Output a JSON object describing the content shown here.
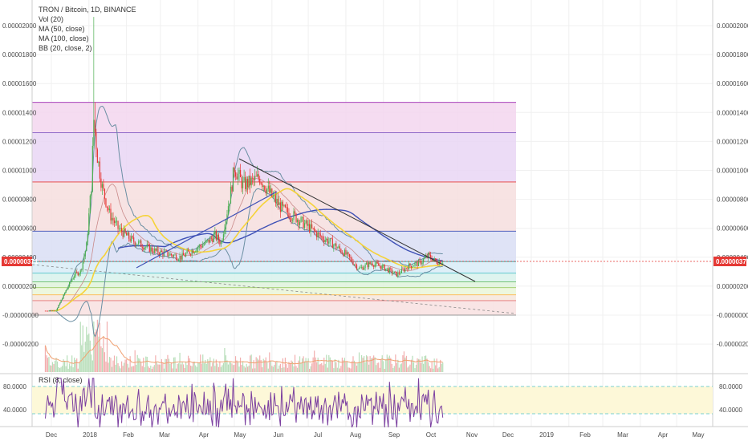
{
  "legend": {
    "title": "TRON / Bitcoin, 1D, BINANCE",
    "items": [
      "Vol (20)",
      "MA (50, close)",
      "MA (100, close)",
      "BB (20, close, 2)"
    ]
  },
  "rsi_label": "RSI (8, close)",
  "colors": {
    "up": "#4caf50",
    "down": "#e53935",
    "ma50": "#f5d33a",
    "ma100": "#3f51b5",
    "bb": "#6b8fa3",
    "vol_ma": "#f0a070",
    "rsi_line": "#7b3fa0",
    "price_line": "#e53935"
  },
  "chart_data": {
    "type": "candlestick",
    "price_axis_ticks": [
      "0.00002000",
      "0.00001800",
      "0.00001600",
      "0.00001400",
      "0.00001200",
      "0.00001000",
      "0.00000800",
      "0.00000600",
      "0.00000400",
      "0.00000200",
      "-0.00000000",
      "-0.00000200"
    ],
    "price_axis_values": [
      2e-05,
      1.8e-05,
      1.6e-05,
      1.4e-05,
      1.2e-05,
      1e-05,
      8e-06,
      6e-06,
      4e-06,
      2e-06,
      0,
      -2e-06
    ],
    "current_price": "0.00000371",
    "current_price_value": 3.71e-06,
    "x_axis_ticks": [
      "Dec",
      "2018",
      "Feb",
      "Mar",
      "Apr",
      "May",
      "Jun",
      "Jul",
      "Aug",
      "Sep",
      "Oct",
      "Nov",
      "Dec",
      "2019",
      "Feb",
      "Mar",
      "Apr",
      "May"
    ],
    "rsi_axis_ticks": [
      "80.0000",
      "40.0000"
    ],
    "fib_levels": [
      1.47e-05,
      1.26e-05,
      9.2e-06,
      5.8e-06,
      3.7e-06,
      2.9e-06,
      2.3e-06,
      1.9e-06,
      1.4e-06,
      1e-06,
      0.0
    ],
    "price_series_approx": [
      [
        "2017-11-26",
        3e-07
      ],
      [
        "2017-12-05",
        3.2e-07
      ],
      [
        "2017-12-10",
        1.2e-06
      ],
      [
        "2017-12-15",
        2e-06
      ],
      [
        "2017-12-20",
        2.8e-06
      ],
      [
        "2017-12-25",
        3e-06
      ],
      [
        "2017-12-30",
        4.8e-06
      ],
      [
        "2018-01-03",
        9e-06
      ],
      [
        "2018-01-05",
        1.35e-05
      ],
      [
        "2018-01-08",
        1.1e-05
      ],
      [
        "2018-01-12",
        8.8e-06
      ],
      [
        "2018-01-18",
        7e-06
      ],
      [
        "2018-01-25",
        6e-06
      ],
      [
        "2018-02-05",
        5.2e-06
      ],
      [
        "2018-02-15",
        4.8e-06
      ],
      [
        "2018-02-25",
        4.4e-06
      ],
      [
        "2018-03-08",
        4.2e-06
      ],
      [
        "2018-03-18",
        4e-06
      ],
      [
        "2018-03-28",
        4.5e-06
      ],
      [
        "2018-04-08",
        5e-06
      ],
      [
        "2018-04-15",
        5.5e-06
      ],
      [
        "2018-04-20",
        5e-06
      ],
      [
        "2018-04-28",
        8.5e-06
      ],
      [
        "2018-05-01",
        1.02e-05
      ],
      [
        "2018-05-08",
        9e-06
      ],
      [
        "2018-05-15",
        9.2e-06
      ],
      [
        "2018-05-22",
        9.5e-06
      ],
      [
        "2018-06-01",
        8.2e-06
      ],
      [
        "2018-06-10",
        7.3e-06
      ],
      [
        "2018-06-20",
        6.8e-06
      ],
      [
        "2018-07-01",
        6.1e-06
      ],
      [
        "2018-07-10",
        5.5e-06
      ],
      [
        "2018-07-20",
        5e-06
      ],
      [
        "2018-08-01",
        4.2e-06
      ],
      [
        "2018-08-12",
        3.2e-06
      ],
      [
        "2018-08-22",
        3.6e-06
      ],
      [
        "2018-09-01",
        3.3e-06
      ],
      [
        "2018-09-12",
        2.8e-06
      ],
      [
        "2018-09-22",
        3.4e-06
      ],
      [
        "2018-10-01",
        3.6e-06
      ],
      [
        "2018-10-08",
        4.1e-06
      ],
      [
        "2018-10-14",
        3.7e-06
      ],
      [
        "2018-10-20",
        3.71e-06
      ]
    ]
  }
}
